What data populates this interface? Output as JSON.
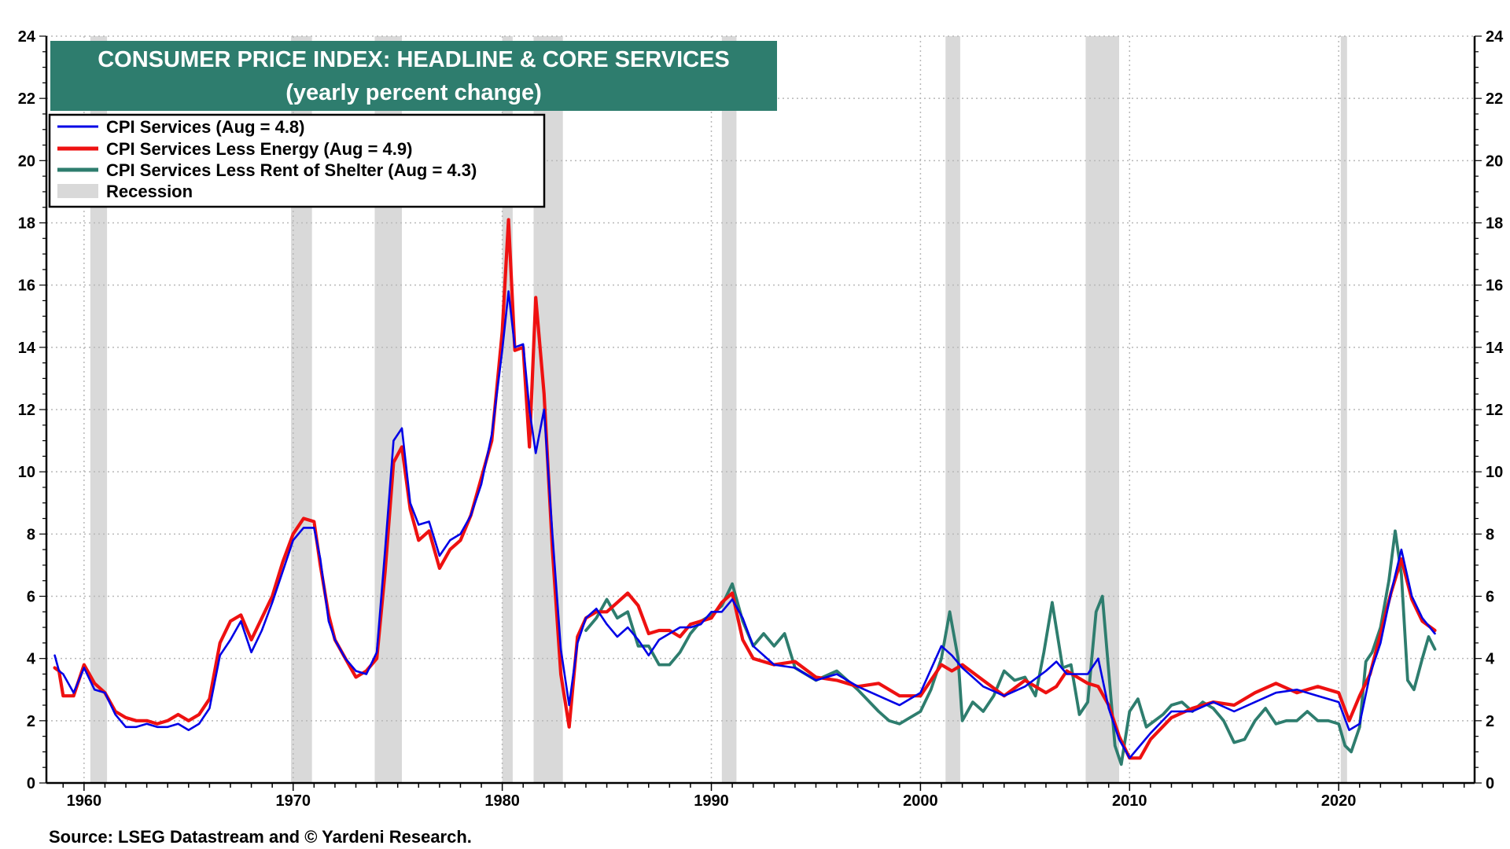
{
  "chart_data": {
    "type": "line",
    "title": "CONSUMER PRICE INDEX: HEADLINE & CORE SERVICES",
    "subtitle": "(yearly percent change)",
    "source": "Source: LSEG Datastream and © Yardeni Research.",
    "xlim": [
      1958.2,
      2026.5
    ],
    "ylim": [
      0,
      24
    ],
    "x_ticks": [
      1960,
      1970,
      1980,
      1990,
      2000,
      2010,
      2020
    ],
    "x_tick_labels": [
      "1960",
      "1970",
      "1980",
      "1990",
      "2000",
      "2010",
      "2020"
    ],
    "y_ticks": [
      0,
      2,
      4,
      6,
      8,
      10,
      12,
      14,
      16,
      18,
      20,
      22,
      24
    ],
    "y_tick_labels": [
      "0",
      "2",
      "4",
      "6",
      "8",
      "10",
      "12",
      "14",
      "16",
      "18",
      "20",
      "22",
      "24"
    ],
    "grid": true,
    "legend_position": "top-left",
    "legend": [
      {
        "label": "CPI Services (Aug = 4.8)",
        "color": "#0000e6"
      },
      {
        "label": "CPI Services Less Energy (Aug = 4.9)",
        "color": "#ee1111"
      },
      {
        "label": "CPI Services Less Rent of Shelter (Aug = 4.3)",
        "color": "#2e7d6e"
      },
      {
        "label": "Recession",
        "color": "#d9d9d9"
      }
    ],
    "recessions": [
      [
        1960.3,
        1961.1
      ],
      [
        1969.9,
        1970.9
      ],
      [
        1973.9,
        1975.2
      ],
      [
        1980.0,
        1980.5
      ],
      [
        1981.5,
        1982.9
      ],
      [
        1990.5,
        1991.2
      ],
      [
        2001.2,
        2001.9
      ],
      [
        2007.9,
        2009.5
      ],
      [
        2020.1,
        2020.4
      ]
    ],
    "series": [
      {
        "name": "CPI Services",
        "color": "#0000e6",
        "x": [
          1958.6,
          1958.8,
          1959.0,
          1959.5,
          1960.0,
          1960.5,
          1961.0,
          1961.5,
          1962.0,
          1962.5,
          1963.0,
          1963.5,
          1964.0,
          1964.5,
          1965.0,
          1965.5,
          1966.0,
          1966.5,
          1967.0,
          1967.5,
          1968.0,
          1968.5,
          1969.0,
          1969.5,
          1970.0,
          1970.5,
          1971.0,
          1971.3,
          1971.7,
          1972.0,
          1972.5,
          1973.0,
          1973.5,
          1974.0,
          1974.4,
          1974.8,
          1975.2,
          1975.6,
          1976.0,
          1976.5,
          1977.0,
          1977.5,
          1978.0,
          1978.5,
          1979.0,
          1979.5,
          1980.0,
          1980.3,
          1980.6,
          1981.0,
          1981.3,
          1981.6,
          1982.0,
          1982.4,
          1982.8,
          1983.2,
          1983.6,
          1984.0,
          1984.5,
          1985.0,
          1985.5,
          1986.0,
          1986.5,
          1987.0,
          1987.5,
          1988.0,
          1988.5,
          1989.0,
          1989.5,
          1990.0,
          1990.5,
          1991.0,
          1991.5,
          1992.0,
          1993.0,
          1994.0,
          1995.0,
          1996.0,
          1997.0,
          1998.0,
          1999.0,
          2000.0,
          2001.0,
          2001.5,
          2002.0,
          2003.0,
          2004.0,
          2005.0,
          2006.0,
          2006.5,
          2007.0,
          2008.0,
          2008.5,
          2009.0,
          2009.5,
          2010.0,
          2010.5,
          2011.0,
          2012.0,
          2013.0,
          2014.0,
          2015.0,
          2016.0,
          2017.0,
          2018.0,
          2019.0,
          2020.0,
          2020.5,
          2021.0,
          2021.5,
          2022.0,
          2022.5,
          2023.0,
          2023.5,
          2024.0,
          2024.6
        ],
        "y": [
          4.1,
          3.6,
          3.5,
          2.9,
          3.7,
          3.0,
          2.9,
          2.2,
          1.8,
          1.8,
          1.9,
          1.8,
          1.8,
          1.9,
          1.7,
          1.9,
          2.4,
          4.1,
          4.6,
          5.2,
          4.2,
          4.9,
          5.8,
          6.8,
          7.8,
          8.2,
          8.2,
          7.2,
          5.2,
          4.6,
          4.0,
          3.6,
          3.5,
          4.2,
          7.5,
          11.0,
          11.4,
          9.0,
          8.3,
          8.4,
          7.3,
          7.8,
          8.0,
          8.6,
          9.6,
          11.2,
          13.9,
          15.8,
          14.0,
          14.1,
          12.0,
          10.6,
          12.0,
          8.0,
          4.3,
          2.5,
          4.5,
          5.3,
          5.6,
          5.1,
          4.7,
          5.0,
          4.6,
          4.1,
          4.6,
          4.8,
          5.0,
          5.0,
          5.1,
          5.5,
          5.5,
          5.9,
          5.3,
          4.4,
          3.8,
          3.7,
          3.3,
          3.5,
          3.1,
          2.8,
          2.5,
          2.9,
          4.4,
          4.1,
          3.7,
          3.1,
          2.8,
          3.1,
          3.6,
          3.9,
          3.5,
          3.5,
          4.0,
          2.4,
          1.4,
          0.8,
          1.2,
          1.6,
          2.3,
          2.3,
          2.6,
          2.3,
          2.6,
          2.9,
          3.0,
          2.8,
          2.6,
          1.7,
          1.9,
          3.5,
          4.5,
          6.1,
          7.5,
          6.0,
          5.3,
          4.8
        ]
      },
      {
        "name": "CPI Services Less Energy",
        "color": "#ee1111",
        "x": [
          1958.6,
          1958.8,
          1959.0,
          1959.5,
          1960.0,
          1960.5,
          1961.0,
          1961.5,
          1962.0,
          1962.5,
          1963.0,
          1963.5,
          1964.0,
          1964.5,
          1965.0,
          1965.5,
          1966.0,
          1966.5,
          1967.0,
          1967.5,
          1968.0,
          1968.5,
          1969.0,
          1969.5,
          1970.0,
          1970.5,
          1971.0,
          1971.3,
          1971.7,
          1972.0,
          1972.5,
          1973.0,
          1973.5,
          1974.0,
          1974.4,
          1974.8,
          1975.2,
          1975.6,
          1976.0,
          1976.5,
          1977.0,
          1977.5,
          1978.0,
          1978.5,
          1979.0,
          1979.5,
          1980.0,
          1980.3,
          1980.6,
          1981.0,
          1981.3,
          1981.6,
          1982.0,
          1982.4,
          1982.8,
          1983.2,
          1983.6,
          1984.0,
          1984.5,
          1985.0,
          1985.5,
          1986.0,
          1986.5,
          1987.0,
          1987.5,
          1988.0,
          1988.5,
          1989.0,
          1989.5,
          1990.0,
          1990.5,
          1991.0,
          1991.5,
          1992.0,
          1993.0,
          1994.0,
          1995.0,
          1996.0,
          1997.0,
          1998.0,
          1999.0,
          2000.0,
          2001.0,
          2001.5,
          2002.0,
          2003.0,
          2004.0,
          2005.0,
          2006.0,
          2006.5,
          2007.0,
          2008.0,
          2008.5,
          2009.0,
          2009.5,
          2010.0,
          2010.5,
          2011.0,
          2012.0,
          2013.0,
          2014.0,
          2015.0,
          2016.0,
          2017.0,
          2018.0,
          2019.0,
          2020.0,
          2020.5,
          2021.0,
          2021.5,
          2022.0,
          2022.5,
          2023.0,
          2023.5,
          2024.0,
          2024.6
        ],
        "y": [
          3.7,
          3.6,
          2.8,
          2.8,
          3.8,
          3.2,
          2.9,
          2.3,
          2.1,
          2.0,
          2.0,
          1.9,
          2.0,
          2.2,
          2.0,
          2.2,
          2.7,
          4.5,
          5.2,
          5.4,
          4.6,
          5.3,
          6.0,
          7.1,
          8.0,
          8.5,
          8.4,
          7.0,
          5.4,
          4.6,
          4.0,
          3.4,
          3.6,
          4.0,
          6.8,
          10.3,
          10.8,
          8.8,
          7.8,
          8.1,
          6.9,
          7.5,
          7.8,
          8.6,
          9.8,
          11.0,
          14.5,
          18.1,
          13.9,
          14.0,
          10.8,
          15.6,
          12.5,
          7.5,
          3.5,
          1.8,
          4.7,
          5.3,
          5.5,
          5.5,
          5.8,
          6.1,
          5.7,
          4.8,
          4.9,
          4.9,
          4.7,
          5.1,
          5.2,
          5.3,
          5.8,
          6.1,
          4.6,
          4.0,
          3.8,
          3.9,
          3.4,
          3.3,
          3.1,
          3.2,
          2.8,
          2.8,
          3.8,
          3.6,
          3.8,
          3.3,
          2.8,
          3.3,
          2.9,
          3.1,
          3.6,
          3.2,
          3.1,
          2.5,
          1.5,
          0.8,
          0.8,
          1.4,
          2.1,
          2.4,
          2.6,
          2.5,
          2.9,
          3.2,
          2.9,
          3.1,
          2.9,
          2.0,
          2.8,
          3.5,
          4.8,
          6.1,
          7.2,
          5.9,
          5.2,
          4.9
        ]
      },
      {
        "name": "CPI Services Less Rent of Shelter",
        "color": "#2e7d6e",
        "x": [
          1984.0,
          1984.5,
          1985.0,
          1985.5,
          1986.0,
          1986.5,
          1987.0,
          1987.5,
          1988.0,
          1988.5,
          1989.0,
          1989.5,
          1990.0,
          1990.5,
          1991.0,
          1991.5,
          1992.0,
          1992.5,
          1993.0,
          1993.5,
          1994.0,
          1995.0,
          1996.0,
          1997.0,
          1998.0,
          1998.5,
          1999.0,
          1999.5,
          2000.0,
          2000.5,
          2001.0,
          2001.4,
          2001.8,
          2002.0,
          2002.5,
          2003.0,
          2003.5,
          2004.0,
          2004.5,
          2005.0,
          2005.5,
          2005.9,
          2006.3,
          2006.8,
          2007.2,
          2007.6,
          2008.0,
          2008.4,
          2008.7,
          2009.0,
          2009.3,
          2009.6,
          2010.0,
          2010.4,
          2010.8,
          2011.2,
          2011.6,
          2012.0,
          2012.5,
          2013.0,
          2013.5,
          2014.0,
          2014.5,
          2015.0,
          2015.5,
          2016.0,
          2016.5,
          2017.0,
          2017.5,
          2018.0,
          2018.5,
          2019.0,
          2019.5,
          2020.0,
          2020.3,
          2020.6,
          2021.0,
          2021.3,
          2021.6,
          2022.0,
          2022.4,
          2022.7,
          2023.0,
          2023.3,
          2023.6,
          2024.0,
          2024.3,
          2024.6
        ],
        "y": [
          4.9,
          5.3,
          5.9,
          5.3,
          5.5,
          4.4,
          4.4,
          3.8,
          3.8,
          4.2,
          4.8,
          5.2,
          5.4,
          5.7,
          6.4,
          5.2,
          4.4,
          4.8,
          4.4,
          4.8,
          3.7,
          3.3,
          3.6,
          3.0,
          2.3,
          2.0,
          1.9,
          2.1,
          2.3,
          3.0,
          4.0,
          5.5,
          4.0,
          2.0,
          2.6,
          2.3,
          2.8,
          3.6,
          3.3,
          3.4,
          2.8,
          4.2,
          5.8,
          3.7,
          3.8,
          2.2,
          2.6,
          5.5,
          6.0,
          3.6,
          1.2,
          0.6,
          2.3,
          2.7,
          1.8,
          2.0,
          2.2,
          2.5,
          2.6,
          2.3,
          2.6,
          2.4,
          2.0,
          1.3,
          1.4,
          2.0,
          2.4,
          1.9,
          2.0,
          2.0,
          2.3,
          2.0,
          2.0,
          1.9,
          1.2,
          1.0,
          1.8,
          3.9,
          4.2,
          5.0,
          6.5,
          8.1,
          6.7,
          3.3,
          3.0,
          4.0,
          4.7,
          4.3
        ]
      }
    ]
  }
}
